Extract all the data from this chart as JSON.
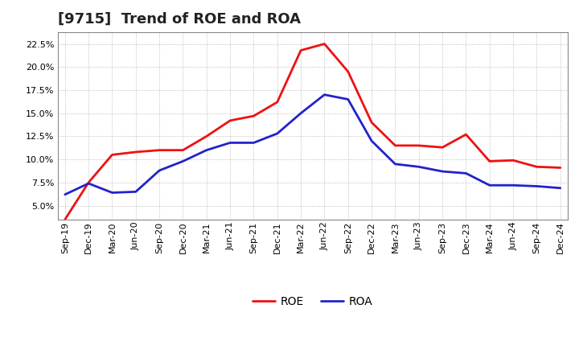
{
  "title": "[9715]  Trend of ROE and ROA",
  "x_labels": [
    "Sep-19",
    "Dec-19",
    "Mar-20",
    "Jun-20",
    "Sep-20",
    "Dec-20",
    "Mar-21",
    "Jun-21",
    "Sep-21",
    "Dec-21",
    "Mar-22",
    "Jun-22",
    "Sep-22",
    "Dec-22",
    "Mar-23",
    "Jun-23",
    "Sep-23",
    "Dec-23",
    "Mar-24",
    "Jun-24",
    "Sep-24",
    "Dec-24"
  ],
  "roe": [
    3.5,
    7.5,
    10.5,
    10.8,
    11.0,
    11.0,
    12.5,
    14.2,
    14.7,
    16.2,
    21.8,
    22.5,
    19.5,
    14.0,
    11.5,
    11.5,
    11.3,
    12.7,
    9.8,
    9.9,
    9.2,
    9.1
  ],
  "roa": [
    6.2,
    7.4,
    6.4,
    6.5,
    8.8,
    9.8,
    11.0,
    11.8,
    11.8,
    12.8,
    15.0,
    17.0,
    16.5,
    12.0,
    9.5,
    9.2,
    8.7,
    8.5,
    7.2,
    7.2,
    7.1,
    6.9
  ],
  "roe_color": "#EE1111",
  "roa_color": "#2222CC",
  "background_color": "#FFFFFF",
  "plot_bg_color": "#FFFFFF",
  "grid_color": "#999999",
  "ylim": [
    3.5,
    23.8
  ],
  "yticks": [
    5.0,
    7.5,
    10.0,
    12.5,
    15.0,
    17.5,
    20.0,
    22.5
  ],
  "title_fontsize": 13,
  "legend_fontsize": 10,
  "tick_fontsize": 8,
  "line_width": 2.0
}
